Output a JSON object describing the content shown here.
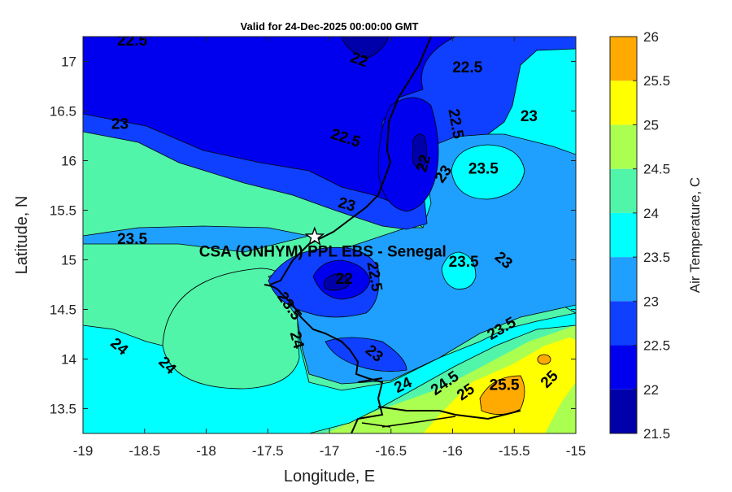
{
  "title": "Valid for 24-Dec-2025 00:00:00 GMT",
  "map": {
    "xlabel": "Longitude, E",
    "ylabel": "Latitude, N",
    "xlim": [
      -19,
      -15
    ],
    "ylim": [
      13.25,
      17.25
    ],
    "xticks": [
      "-19",
      "-18.5",
      "-18",
      "-17.5",
      "-17",
      "-16.5",
      "-16",
      "-15.5",
      "-15"
    ],
    "yticks": [
      "13.5",
      "14",
      "14.5",
      "15",
      "15.5",
      "16",
      "16.5",
      "17"
    ],
    "station": {
      "label": "CSA (ONHYM) PPL EBS  - Senegal",
      "lon": -17.12,
      "lat": 15.23,
      "marker": "star"
    },
    "contour_labels": [
      {
        "text": "22.5",
        "lon": -18.6,
        "lat": 17.2,
        "rot": 0
      },
      {
        "text": "22",
        "lon": -16.76,
        "lat": 17.01,
        "rot": 20
      },
      {
        "text": "22.5",
        "lon": -15.88,
        "lat": 16.93,
        "rot": 0
      },
      {
        "text": "23",
        "lon": -18.7,
        "lat": 16.36,
        "rot": 0
      },
      {
        "text": "22.5",
        "lon": -16.87,
        "lat": 16.22,
        "rot": 18
      },
      {
        "text": "22.5",
        "lon": -15.98,
        "lat": 16.37,
        "rot": 80
      },
      {
        "text": "23",
        "lon": -15.38,
        "lat": 16.44,
        "rot": 0
      },
      {
        "text": "22",
        "lon": -16.23,
        "lat": 15.97,
        "rot": -75
      },
      {
        "text": "23",
        "lon": -16.07,
        "lat": 15.86,
        "rot": -55
      },
      {
        "text": "23.5",
        "lon": -15.75,
        "lat": 15.91,
        "rot": 0
      },
      {
        "text": "23",
        "lon": -16.86,
        "lat": 15.55,
        "rot": 15
      },
      {
        "text": "23.5",
        "lon": -18.6,
        "lat": 15.2,
        "rot": 0
      },
      {
        "text": "23.5",
        "lon": -15.91,
        "lat": 14.97,
        "rot": 0
      },
      {
        "text": "23",
        "lon": -15.59,
        "lat": 14.99,
        "rot": 40
      },
      {
        "text": "22",
        "lon": -16.88,
        "lat": 14.8,
        "rot": 0
      },
      {
        "text": "22.5",
        "lon": -16.64,
        "lat": 14.83,
        "rot": 80
      },
      {
        "text": "23.5",
        "lon": -17.33,
        "lat": 14.53,
        "rot": 55
      },
      {
        "text": "24",
        "lon": -17.27,
        "lat": 14.19,
        "rot": 75
      },
      {
        "text": "24",
        "lon": -18.71,
        "lat": 14.12,
        "rot": 40
      },
      {
        "text": "24",
        "lon": -18.32,
        "lat": 13.93,
        "rot": 45
      },
      {
        "text": "23",
        "lon": -16.64,
        "lat": 14.05,
        "rot": 40
      },
      {
        "text": "23.5",
        "lon": -15.6,
        "lat": 14.3,
        "rot": -30
      },
      {
        "text": "24",
        "lon": -16.4,
        "lat": 13.73,
        "rot": -25
      },
      {
        "text": "24.5",
        "lon": -16.06,
        "lat": 13.75,
        "rot": -35
      },
      {
        "text": "25",
        "lon": -15.89,
        "lat": 13.66,
        "rot": -35
      },
      {
        "text": "25.5",
        "lon": -15.58,
        "lat": 13.73,
        "rot": 0
      },
      {
        "text": "25",
        "lon": -15.21,
        "lat": 13.79,
        "rot": -45
      }
    ]
  },
  "colorbar": {
    "label": "Air Temperature, C",
    "levels": [
      "21.5",
      "22",
      "22.5",
      "23",
      "23.5",
      "24",
      "24.5",
      "25",
      "25.5",
      "26"
    ],
    "colors": [
      "#0000aa",
      "#0000ee",
      "#0f3fff",
      "#1fa0ff",
      "#00ffff",
      "#50f5aa",
      "#aaff50",
      "#ffff00",
      "#ffaa00",
      "#ff5500"
    ]
  }
}
